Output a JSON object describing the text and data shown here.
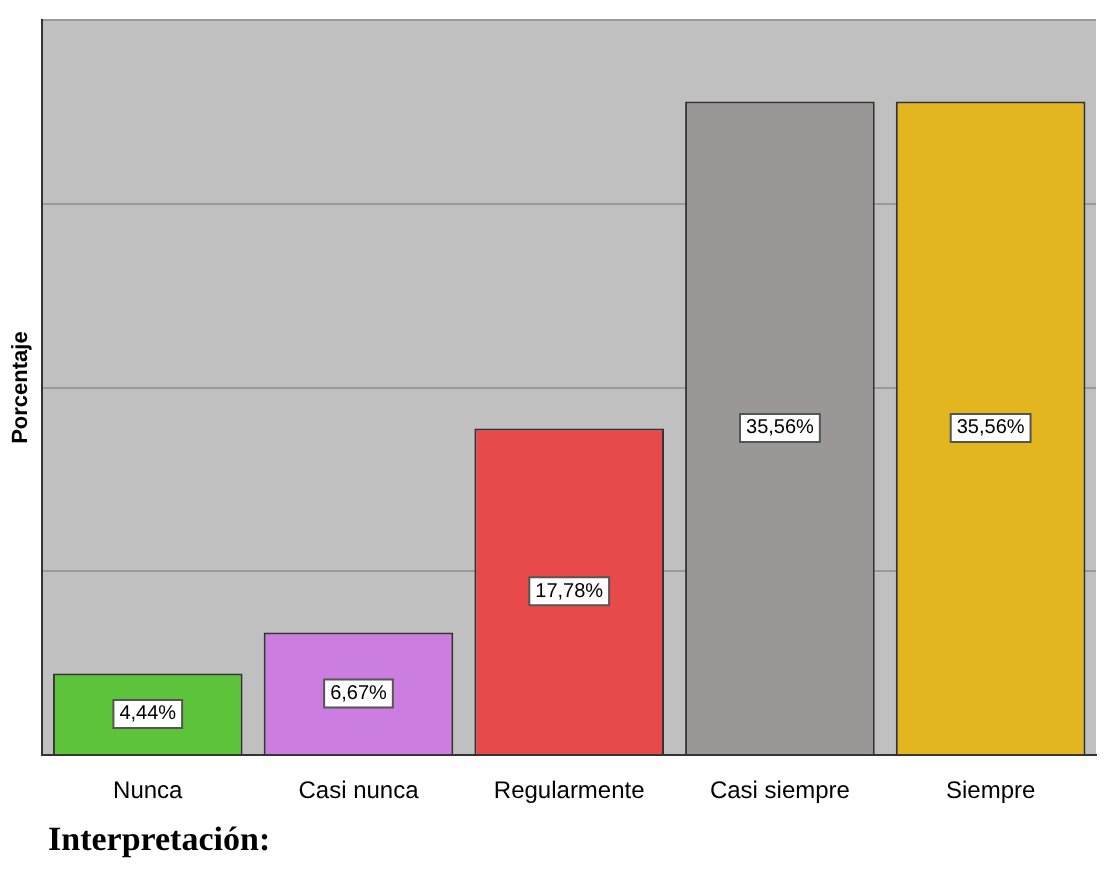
{
  "chart_data": {
    "type": "bar",
    "ylabel": "Porcentaje",
    "categories": [
      "Nunca",
      "Casi nunca",
      "Regularmente",
      "Casi siempre",
      "Siempre"
    ],
    "values": [
      4.44,
      6.67,
      17.78,
      35.56,
      35.56
    ],
    "value_labels": [
      "4,44%",
      "6,67%",
      "17,78%",
      "35,56%",
      "35,56%"
    ],
    "colors": [
      "#5cc33a",
      "#cc7de0",
      "#e84a4c",
      "#9a9796",
      "#e3b51f"
    ],
    "grid": "y",
    "annotations": [
      "Interpretación:"
    ]
  }
}
